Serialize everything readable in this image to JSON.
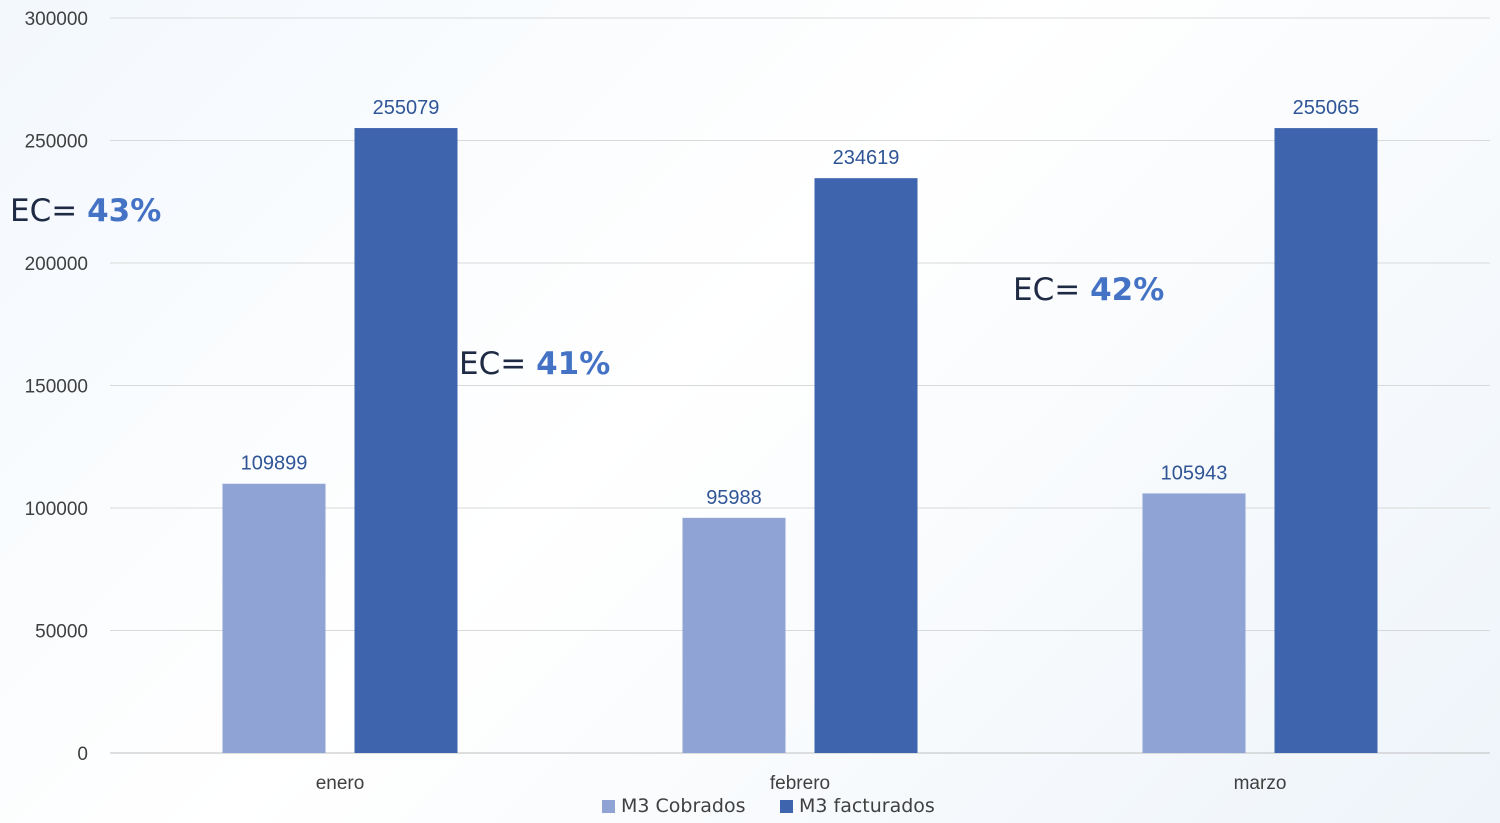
{
  "chart_data": {
    "type": "bar",
    "categories": [
      "enero",
      "febrero",
      "marzo"
    ],
    "series": [
      {
        "name": "M3 Cobrados",
        "values": [
          109899,
          95988,
          105943
        ],
        "color": "#8fa3d4"
      },
      {
        "name": "M3 facturados",
        "values": [
          255079,
          234619,
          255065
        ],
        "color": "#3d64ad"
      }
    ],
    "ylim": [
      0,
      300000
    ],
    "yticks": [
      0,
      50000,
      100000,
      150000,
      200000,
      250000,
      300000
    ],
    "grid": true,
    "legend_position": "bottom",
    "title": "",
    "xlabel": "",
    "ylabel": "",
    "annotations": [
      {
        "prefix": "EC= ",
        "value": "43%"
      },
      {
        "prefix": "EC= ",
        "value": "41%"
      },
      {
        "prefix": "EC= ",
        "value": "42%"
      }
    ]
  }
}
